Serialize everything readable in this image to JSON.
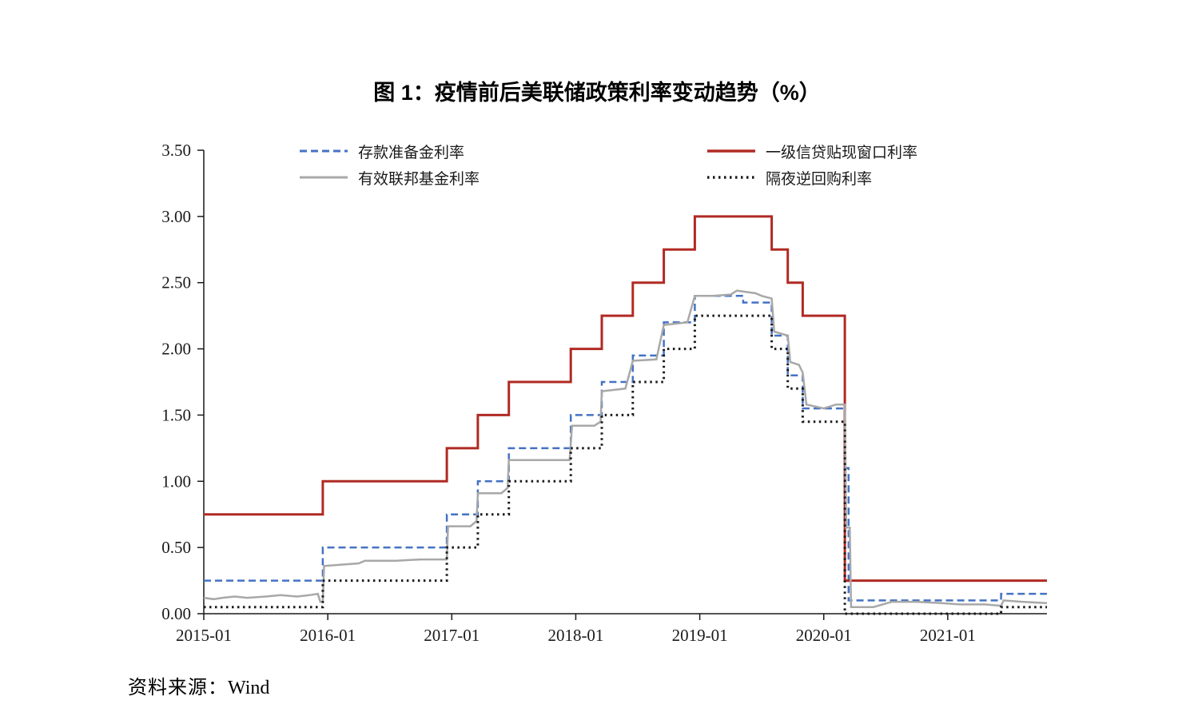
{
  "title": "图 1：疫情前后美联储政策利率变动趋势（%）",
  "source": {
    "label": "资料来源：",
    "value": "Wind"
  },
  "axis": {
    "color": "#1a1a1a"
  },
  "chart_data": {
    "type": "line",
    "title": "图 1：疫情前后美联储政策利率变动趋势（%）",
    "xlabel": "",
    "ylabel": "",
    "grid": false,
    "legend_position": "top-inside",
    "xlim": [
      2015.0,
      2021.8
    ],
    "ylim": [
      0,
      3.5
    ],
    "x_ticks": [
      {
        "v": 2015,
        "label": "2015-01"
      },
      {
        "v": 2016,
        "label": "2016-01"
      },
      {
        "v": 2017,
        "label": "2017-01"
      },
      {
        "v": 2018,
        "label": "2018-01"
      },
      {
        "v": 2019,
        "label": "2019-01"
      },
      {
        "v": 2020,
        "label": "2020-01"
      },
      {
        "v": 2021,
        "label": "2021-01"
      }
    ],
    "y_ticks": [
      {
        "v": 0.0,
        "label": "0.00"
      },
      {
        "v": 0.5,
        "label": "0.50"
      },
      {
        "v": 1.0,
        "label": "1.00"
      },
      {
        "v": 1.5,
        "label": "1.50"
      },
      {
        "v": 2.0,
        "label": "2.00"
      },
      {
        "v": 2.5,
        "label": "2.50"
      },
      {
        "v": 3.0,
        "label": "3.00"
      },
      {
        "v": 3.5,
        "label": "3.50"
      }
    ],
    "draw_order": [
      "ioer",
      "discount",
      "effr",
      "onrrp"
    ],
    "series": [
      {
        "key": "ioer",
        "name": "存款准备金利率",
        "color": "#4472C4",
        "dash": "9 5",
        "width": 2.5,
        "points": [
          [
            2015.0,
            0.25
          ],
          [
            2015.96,
            0.25
          ],
          [
            2015.96,
            0.5
          ],
          [
            2016.96,
            0.5
          ],
          [
            2016.96,
            0.75
          ],
          [
            2017.21,
            0.75
          ],
          [
            2017.21,
            1.0
          ],
          [
            2017.46,
            1.0
          ],
          [
            2017.46,
            1.25
          ],
          [
            2017.96,
            1.25
          ],
          [
            2017.96,
            1.5
          ],
          [
            2018.21,
            1.5
          ],
          [
            2018.21,
            1.75
          ],
          [
            2018.46,
            1.75
          ],
          [
            2018.46,
            1.95
          ],
          [
            2018.71,
            1.95
          ],
          [
            2018.71,
            2.2
          ],
          [
            2018.96,
            2.2
          ],
          [
            2018.96,
            2.4
          ],
          [
            2019.35,
            2.4
          ],
          [
            2019.35,
            2.35
          ],
          [
            2019.58,
            2.35
          ],
          [
            2019.58,
            2.1
          ],
          [
            2019.71,
            2.1
          ],
          [
            2019.71,
            1.8
          ],
          [
            2019.83,
            1.8
          ],
          [
            2019.83,
            1.55
          ],
          [
            2020.17,
            1.55
          ],
          [
            2020.17,
            1.1
          ],
          [
            2020.2,
            1.1
          ],
          [
            2020.2,
            0.1
          ],
          [
            2021.43,
            0.1
          ],
          [
            2021.43,
            0.15
          ],
          [
            2021.8,
            0.15
          ]
        ]
      },
      {
        "key": "discount",
        "name": "一级信贷贴现窗口利率",
        "color": "#B02A23",
        "dash": null,
        "width": 3,
        "points": [
          [
            2015.0,
            0.75
          ],
          [
            2015.96,
            0.75
          ],
          [
            2015.96,
            1.0
          ],
          [
            2016.96,
            1.0
          ],
          [
            2016.96,
            1.25
          ],
          [
            2017.21,
            1.25
          ],
          [
            2017.21,
            1.5
          ],
          [
            2017.46,
            1.5
          ],
          [
            2017.46,
            1.75
          ],
          [
            2017.96,
            1.75
          ],
          [
            2017.96,
            2.0
          ],
          [
            2018.21,
            2.0
          ],
          [
            2018.21,
            2.25
          ],
          [
            2018.46,
            2.25
          ],
          [
            2018.46,
            2.5
          ],
          [
            2018.71,
            2.5
          ],
          [
            2018.71,
            2.75
          ],
          [
            2018.96,
            2.75
          ],
          [
            2018.96,
            3.0
          ],
          [
            2019.58,
            3.0
          ],
          [
            2019.58,
            2.75
          ],
          [
            2019.71,
            2.75
          ],
          [
            2019.71,
            2.5
          ],
          [
            2019.83,
            2.5
          ],
          [
            2019.83,
            2.25
          ],
          [
            2020.17,
            2.25
          ],
          [
            2020.17,
            0.25
          ],
          [
            2021.8,
            0.25
          ]
        ]
      },
      {
        "key": "effr",
        "name": "有效联邦基金利率",
        "color": "#A8A8A8",
        "dash": null,
        "width": 2.5,
        "points": [
          [
            2015.0,
            0.12
          ],
          [
            2015.08,
            0.11
          ],
          [
            2015.15,
            0.12
          ],
          [
            2015.25,
            0.13
          ],
          [
            2015.35,
            0.12
          ],
          [
            2015.5,
            0.13
          ],
          [
            2015.62,
            0.14
          ],
          [
            2015.75,
            0.13
          ],
          [
            2015.85,
            0.14
          ],
          [
            2015.92,
            0.15
          ],
          [
            2015.94,
            0.09
          ],
          [
            2015.96,
            0.09
          ],
          [
            2015.97,
            0.36
          ],
          [
            2016.1,
            0.37
          ],
          [
            2016.25,
            0.38
          ],
          [
            2016.3,
            0.4
          ],
          [
            2016.55,
            0.4
          ],
          [
            2016.75,
            0.41
          ],
          [
            2016.9,
            0.41
          ],
          [
            2016.96,
            0.41
          ],
          [
            2016.97,
            0.66
          ],
          [
            2017.15,
            0.66
          ],
          [
            2017.2,
            0.7
          ],
          [
            2017.21,
            0.91
          ],
          [
            2017.4,
            0.91
          ],
          [
            2017.45,
            0.95
          ],
          [
            2017.46,
            1.16
          ],
          [
            2017.7,
            1.16
          ],
          [
            2017.95,
            1.16
          ],
          [
            2017.97,
            1.42
          ],
          [
            2018.15,
            1.42
          ],
          [
            2018.2,
            1.45
          ],
          [
            2018.21,
            1.68
          ],
          [
            2018.4,
            1.7
          ],
          [
            2018.46,
            1.91
          ],
          [
            2018.65,
            1.92
          ],
          [
            2018.71,
            2.18
          ],
          [
            2018.9,
            2.2
          ],
          [
            2018.96,
            2.4
          ],
          [
            2019.1,
            2.4
          ],
          [
            2019.25,
            2.41
          ],
          [
            2019.3,
            2.44
          ],
          [
            2019.45,
            2.42
          ],
          [
            2019.5,
            2.4
          ],
          [
            2019.58,
            2.38
          ],
          [
            2019.6,
            2.13
          ],
          [
            2019.71,
            2.1
          ],
          [
            2019.73,
            1.9
          ],
          [
            2019.8,
            1.88
          ],
          [
            2019.83,
            1.82
          ],
          [
            2019.86,
            1.58
          ],
          [
            2020.0,
            1.55
          ],
          [
            2020.1,
            1.58
          ],
          [
            2020.17,
            1.58
          ],
          [
            2020.18,
            0.65
          ],
          [
            2020.21,
            0.65
          ],
          [
            2020.22,
            0.05
          ],
          [
            2020.4,
            0.05
          ],
          [
            2020.55,
            0.09
          ],
          [
            2020.75,
            0.09
          ],
          [
            2020.95,
            0.08
          ],
          [
            2021.1,
            0.07
          ],
          [
            2021.3,
            0.07
          ],
          [
            2021.43,
            0.06
          ],
          [
            2021.45,
            0.1
          ],
          [
            2021.6,
            0.09
          ],
          [
            2021.8,
            0.08
          ]
        ]
      },
      {
        "key": "onrrp",
        "name": "隔夜逆回购利率",
        "color": "#1A1A1A",
        "dash": "2.5 4.5",
        "width": 3,
        "points": [
          [
            2015.0,
            0.05
          ],
          [
            2015.96,
            0.05
          ],
          [
            2015.96,
            0.25
          ],
          [
            2016.96,
            0.25
          ],
          [
            2016.96,
            0.5
          ],
          [
            2017.21,
            0.5
          ],
          [
            2017.21,
            0.75
          ],
          [
            2017.46,
            0.75
          ],
          [
            2017.46,
            1.0
          ],
          [
            2017.96,
            1.0
          ],
          [
            2017.96,
            1.25
          ],
          [
            2018.21,
            1.25
          ],
          [
            2018.21,
            1.5
          ],
          [
            2018.46,
            1.5
          ],
          [
            2018.46,
            1.75
          ],
          [
            2018.71,
            1.75
          ],
          [
            2018.71,
            2.0
          ],
          [
            2018.96,
            2.0
          ],
          [
            2018.96,
            2.25
          ],
          [
            2019.58,
            2.25
          ],
          [
            2019.58,
            2.0
          ],
          [
            2019.71,
            2.0
          ],
          [
            2019.71,
            1.7
          ],
          [
            2019.83,
            1.7
          ],
          [
            2019.83,
            1.45
          ],
          [
            2020.17,
            1.45
          ],
          [
            2020.17,
            0.0
          ],
          [
            2021.43,
            0.0
          ],
          [
            2021.43,
            0.05
          ],
          [
            2021.8,
            0.05
          ]
        ]
      }
    ]
  }
}
